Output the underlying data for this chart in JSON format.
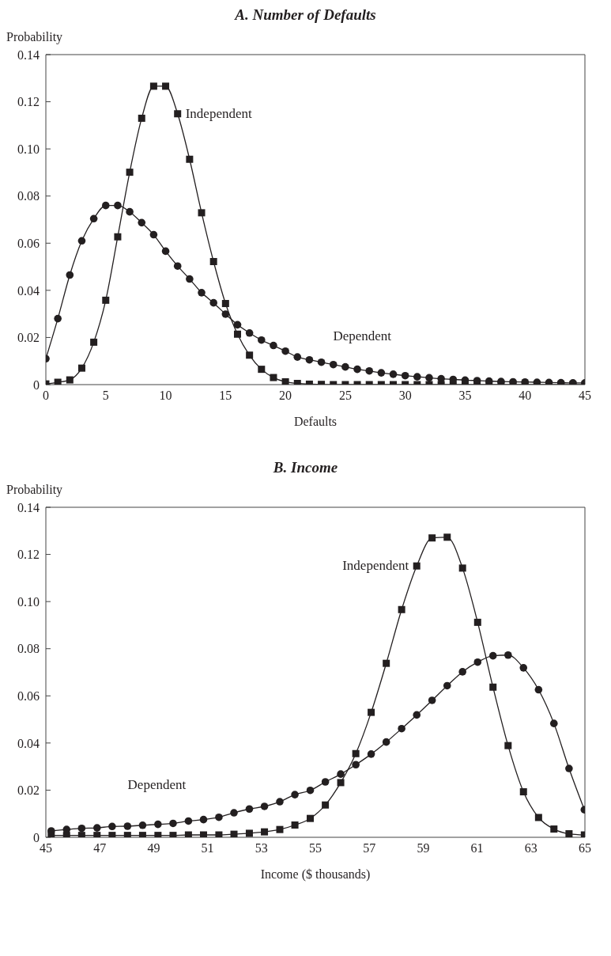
{
  "chart_data": [
    {
      "type": "line",
      "title": "A. Number of Defaults",
      "ylabel": "Probability",
      "xlabel": "Defaults",
      "line_style": "solid",
      "x": [
        0,
        1,
        2,
        3,
        4,
        5,
        6,
        7,
        8,
        9,
        10,
        11,
        12,
        13,
        14,
        15,
        16,
        17,
        18,
        19,
        20,
        21,
        22,
        23,
        24,
        25,
        26,
        27,
        28,
        29,
        30,
        31,
        32,
        33,
        34,
        35,
        36,
        37,
        38,
        39,
        40,
        41,
        42,
        43,
        44,
        45
      ],
      "xlim": [
        0,
        45
      ],
      "xticks": [
        0,
        5,
        10,
        15,
        20,
        25,
        30,
        35,
        40,
        45
      ],
      "ylim": [
        0,
        0.14
      ],
      "yticks": [
        0,
        0.02,
        0.04,
        0.06,
        0.08,
        {
          "value": 0.1,
          "label": "0.10"
        },
        0.12,
        0.14
      ],
      "series": [
        {
          "name": "Independent",
          "color": "#231f20",
          "marker": "square",
          "values": [
            0.0003,
            0.001,
            0.002,
            0.007,
            0.018,
            0.0358,
            0.0627,
            0.0901,
            0.113,
            0.1266,
            0.1266,
            0.1149,
            0.0956,
            0.0729,
            0.0522,
            0.0344,
            0.0214,
            0.0125,
            0.0065,
            0.003,
            0.0012,
            0.0005,
            0.0002,
            0.0001,
            0,
            0,
            0,
            0,
            0,
            0,
            0,
            0,
            0,
            0,
            0,
            0,
            0,
            0,
            0,
            0,
            0,
            0,
            0,
            0,
            0,
            0
          ]
        },
        {
          "name": "Dependent",
          "color": "#231f20",
          "marker": "circle",
          "values": [
            0.011,
            0.028,
            0.0465,
            0.061,
            0.0704,
            0.076,
            0.076,
            0.0733,
            0.0687,
            0.0636,
            0.0566,
            0.0503,
            0.0448,
            0.039,
            0.0347,
            0.0299,
            0.0254,
            0.0219,
            0.0189,
            0.0166,
            0.0142,
            0.0117,
            0.0105,
            0.0095,
            0.0085,
            0.0075,
            0.0065,
            0.0058,
            0.005,
            0.0044,
            0.0038,
            0.0033,
            0.0029,
            0.0025,
            0.0022,
            0.0019,
            0.0017,
            0.0015,
            0.0013,
            0.0012,
            0.0011,
            0.001,
            0.0009,
            0.0008,
            0.0007,
            0.0007
          ]
        }
      ]
    },
    {
      "type": "line",
      "title": "B. Income",
      "ylabel": "Probability",
      "xlabel": "Income ($ thousands)",
      "line_style": "solid",
      "x": [
        45.2,
        45.77,
        46.33,
        46.9,
        47.46,
        48.03,
        48.59,
        49.16,
        49.72,
        50.29,
        50.85,
        51.42,
        51.98,
        52.55,
        53.11,
        53.68,
        54.24,
        54.81,
        55.37,
        55.94,
        56.5,
        57.07,
        57.63,
        58.2,
        58.76,
        59.33,
        59.89,
        60.46,
        61.02,
        61.59,
        62.15,
        62.72,
        63.28,
        63.85,
        64.41,
        64.98
      ],
      "xlim": [
        45,
        65
      ],
      "xticks": [
        45,
        47,
        49,
        51,
        53,
        55,
        57,
        59,
        61,
        63,
        65
      ],
      "ylim": [
        0,
        0.14
      ],
      "yticks": [
        0,
        0.02,
        0.04,
        0.06,
        0.08,
        {
          "value": 0.1,
          "label": "0.10"
        },
        0.12,
        0.14
      ],
      "series": [
        {
          "name": "Independent",
          "color": "#231f20",
          "marker": "square",
          "values": [
            0.0008,
            0.0008,
            0.0008,
            0.0008,
            0.0008,
            0.0008,
            0.0008,
            0.0008,
            0.0008,
            0.001,
            0.001,
            0.001,
            0.0013,
            0.0017,
            0.0023,
            0.0033,
            0.0052,
            0.008,
            0.0137,
            0.0232,
            0.0355,
            0.053,
            0.0738,
            0.0966,
            0.1151,
            0.127,
            0.1273,
            0.1142,
            0.0912,
            0.0637,
            0.0389,
            0.0193,
            0.0084,
            0.0035,
            0.0015,
            0.001
          ]
        },
        {
          "name": "Dependent",
          "color": "#231f20",
          "marker": "circle",
          "values": [
            0.0027,
            0.0033,
            0.0038,
            0.004,
            0.0046,
            0.0047,
            0.0051,
            0.0055,
            0.0059,
            0.0069,
            0.0075,
            0.0085,
            0.0104,
            0.012,
            0.0131,
            0.0151,
            0.0181,
            0.0199,
            0.0235,
            0.0268,
            0.0308,
            0.0353,
            0.0404,
            0.0461,
            0.0519,
            0.0581,
            0.0643,
            0.0702,
            0.0743,
            0.077,
            0.0773,
            0.0719,
            0.0626,
            0.0483,
            0.0292,
            0.0117
          ]
        }
      ]
    }
  ]
}
